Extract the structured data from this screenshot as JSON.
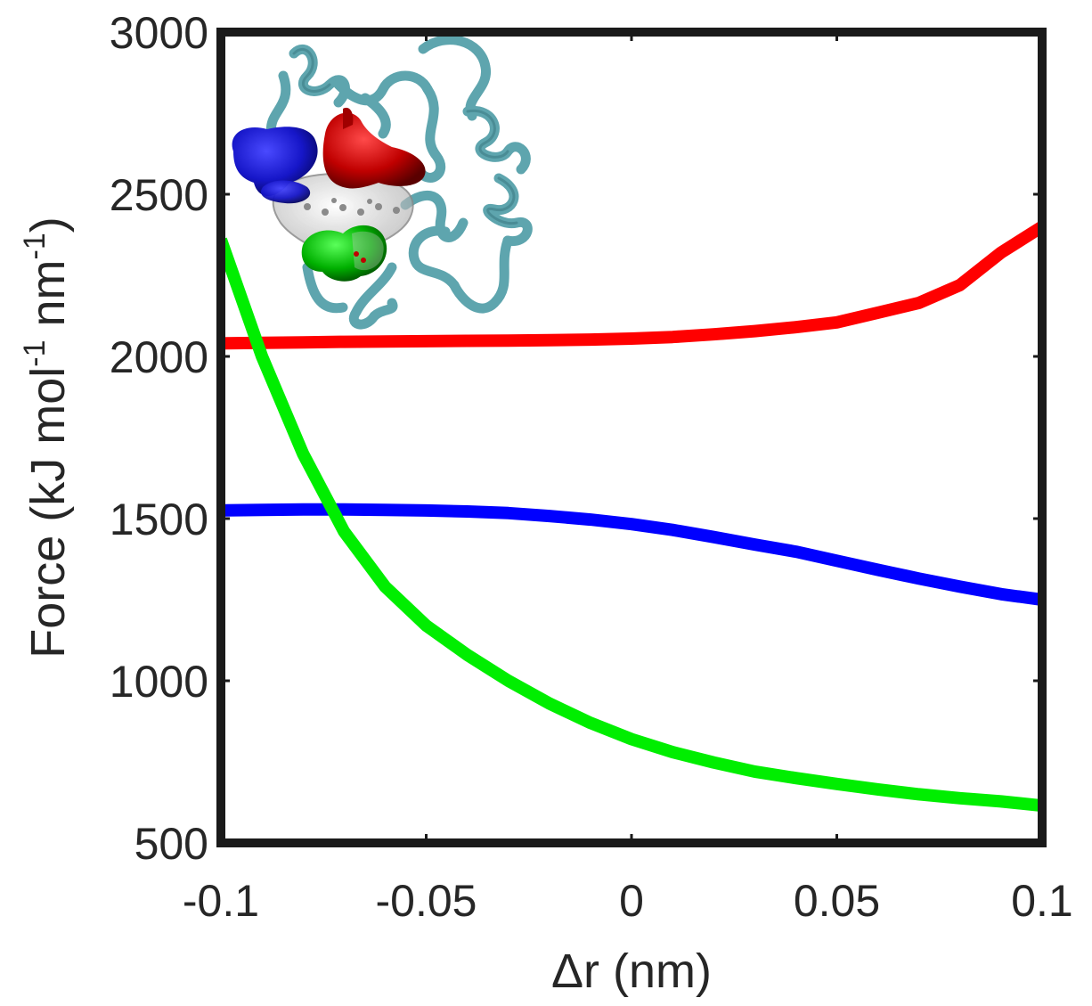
{
  "chart_data": {
    "type": "line",
    "xlabel": "Δr (nm)",
    "ylabel_parts": [
      "Force (kJ mol",
      "-1",
      " nm",
      "-1",
      ")"
    ],
    "xlim": [
      -0.1,
      0.1
    ],
    "ylim": [
      500,
      3000
    ],
    "xticks": [
      -0.1,
      -0.05,
      0,
      0.05,
      0.1
    ],
    "xtick_labels": [
      "-0.1",
      "-0.05",
      "0",
      "0.05",
      "0.1"
    ],
    "yticks": [
      500,
      1000,
      1500,
      2000,
      2500,
      3000
    ],
    "ytick_labels": [
      "500",
      "1000",
      "1500",
      "2000",
      "2500",
      "3000"
    ],
    "grid": false,
    "legend": "none",
    "series": [
      {
        "color": "#ff0000",
        "x": [
          -0.1,
          -0.09,
          -0.08,
          -0.07,
          -0.06,
          -0.05,
          -0.04,
          -0.03,
          -0.02,
          -0.01,
          0,
          0.01,
          0.02,
          0.03,
          0.04,
          0.05,
          0.06,
          0.07,
          0.08,
          0.09,
          0.1
        ],
        "y": [
          2040,
          2042,
          2043,
          2045,
          2046,
          2047,
          2048,
          2049,
          2050,
          2052,
          2055,
          2060,
          2068,
          2078,
          2090,
          2105,
          2135,
          2165,
          2220,
          2320,
          2400
        ]
      },
      {
        "color": "#0000ff",
        "x": [
          -0.1,
          -0.09,
          -0.08,
          -0.07,
          -0.06,
          -0.05,
          -0.04,
          -0.03,
          -0.02,
          -0.01,
          0,
          0.01,
          0.02,
          0.03,
          0.04,
          0.05,
          0.06,
          0.07,
          0.08,
          0.09,
          0.1
        ],
        "y": [
          1525,
          1527,
          1528,
          1528,
          1527,
          1525,
          1522,
          1517,
          1508,
          1497,
          1483,
          1465,
          1443,
          1420,
          1398,
          1370,
          1342,
          1315,
          1290,
          1267,
          1250
        ]
      },
      {
        "color": "#00ee00",
        "x": [
          -0.1,
          -0.09,
          -0.08,
          -0.07,
          -0.06,
          -0.05,
          -0.04,
          -0.03,
          -0.02,
          -0.01,
          0,
          0.01,
          0.02,
          0.03,
          0.04,
          0.05,
          0.06,
          0.07,
          0.08,
          0.09,
          0.1
        ],
        "y": [
          2360,
          2000,
          1700,
          1460,
          1290,
          1170,
          1080,
          1000,
          930,
          870,
          820,
          780,
          748,
          720,
          700,
          682,
          665,
          650,
          638,
          628,
          615
        ]
      }
    ]
  },
  "inset": {
    "icon": "protein-ribbon-structure-icon",
    "colors": {
      "ribbon": "#6fb3bd",
      "ribbon_dark": "#3f7f88",
      "blue_blob": "#1616c8",
      "red_blob": "#c00000",
      "green_blob": "#00b000",
      "gray_blob": "#c8c8c8"
    }
  }
}
